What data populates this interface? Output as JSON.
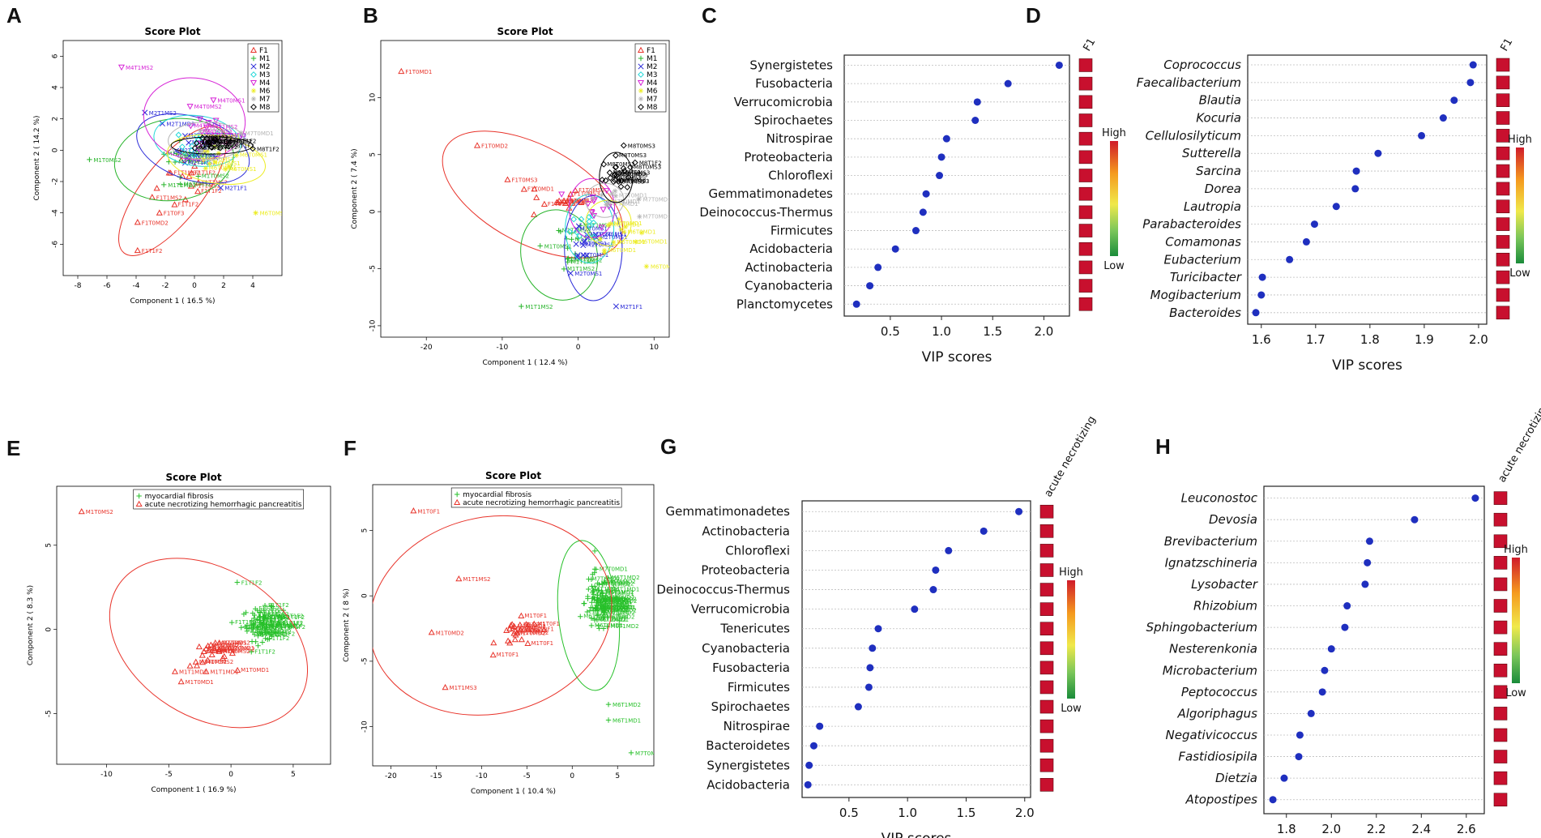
{
  "colors": {
    "dot": "#1f2fbf",
    "heat_cell": "#c8102e",
    "grid": "#bdbdbd",
    "F1": "#e8332a",
    "M1": "#27b42a",
    "M2": "#2a2ad8",
    "M3": "#22d8d8",
    "M4": "#d622d6",
    "M6": "#ecec22",
    "M7": "#b4b4b4",
    "M8": "#000000",
    "myocardial_fibrosis": "#27c02a",
    "acute_necrotizing": "#e8332a"
  },
  "chart_data": [
    {
      "panel": "A",
      "type": "scatter",
      "title": "Score Plot",
      "xlabel": "Component 1 ( 16.5 %)",
      "ylabel": "Component 2 ( 14.2 %)",
      "xlim": [
        -9,
        6
      ],
      "ylim": [
        -8,
        7
      ],
      "xticks": [
        -8,
        -6,
        -4,
        -2,
        0,
        2,
        4
      ],
      "yticks": [
        -6,
        -4,
        -2,
        0,
        2,
        4,
        6
      ],
      "legend": [
        "F1",
        "M1",
        "M2",
        "M3",
        "M4",
        "M6",
        "M7",
        "M8"
      ],
      "groups": [
        {
          "name": "F1",
          "center": [
            -0.6,
            -1.8
          ],
          "spread": [
            1.6,
            2.0
          ],
          "n": 14,
          "labels": [
            {
              "text": "F1T1F2",
              "x": -3.9,
              "y": -6.4
            },
            {
              "text": "F1T0MD2",
              "x": -3.9,
              "y": -4.6
            },
            {
              "text": "F1T1MS2",
              "x": -2.9,
              "y": -3.0
            },
            {
              "text": "F1T0F3",
              "x": -2.4,
              "y": -4.0
            }
          ],
          "ellipse": {
            "cx": -1.5,
            "cy": -2.6,
            "rx": 5.4,
            "ry": 1.9,
            "rot": 52
          }
        },
        {
          "name": "M1",
          "center": [
            -0.7,
            -0.6
          ],
          "spread": [
            1.4,
            1.0
          ],
          "n": 14,
          "labels": [
            {
              "text": "M1T0MS2",
              "x": -7.2,
              "y": -0.6
            },
            {
              "text": "M1T1MD2",
              "x": -2.1,
              "y": -2.2
            }
          ],
          "ellipse": {
            "cx": -1.4,
            "cy": -0.6,
            "rx": 4.1,
            "ry": 2.6,
            "rot": 8
          }
        },
        {
          "name": "M2",
          "center": [
            0.3,
            0.0
          ],
          "spread": [
            1.3,
            1.0
          ],
          "n": 14,
          "labels": [
            {
              "text": "M2T1MS2",
              "x": -3.4,
              "y": 2.4
            },
            {
              "text": "M2T1MD3",
              "x": -2.2,
              "y": 1.7
            },
            {
              "text": "M2T1F1",
              "x": 1.8,
              "y": -2.4
            }
          ],
          "ellipse": {
            "cx": -0.1,
            "cy": 0.1,
            "rx": 4.0,
            "ry": 2.0,
            "rot": -18
          }
        },
        {
          "name": "M3",
          "center": [
            0.4,
            0.3
          ],
          "spread": [
            1.2,
            0.9
          ],
          "n": 12,
          "labels": [],
          "ellipse": {
            "cx": 0.2,
            "cy": 0.6,
            "rx": 3.0,
            "ry": 1.6,
            "rot": -8
          }
        },
        {
          "name": "M4",
          "center": [
            0.3,
            1.0
          ],
          "spread": [
            1.3,
            1.0
          ],
          "n": 12,
          "labels": [
            {
              "text": "M4T1MS2",
              "x": -5.0,
              "y": 5.3
            },
            {
              "text": "M4T0MS1",
              "x": 1.3,
              "y": 3.2
            },
            {
              "text": "M4T0MS2",
              "x": -0.3,
              "y": 2.8
            }
          ],
          "ellipse": {
            "cx": 0.0,
            "cy": 2.0,
            "rx": 3.5,
            "ry": 2.6,
            "rot": -10
          }
        },
        {
          "name": "M6",
          "center": [
            1.5,
            -0.5
          ],
          "spread": [
            1.3,
            0.9
          ],
          "n": 12,
          "labels": [
            {
              "text": "M6T0MS1",
              "x": 4.2,
              "y": -4.0
            }
          ],
          "ellipse": {
            "cx": 1.5,
            "cy": -0.6,
            "rx": 3.4,
            "ry": 1.5,
            "rot": -10
          }
        },
        {
          "name": "M7",
          "center": [
            0.8,
            0.5
          ],
          "spread": [
            1.2,
            0.8
          ],
          "n": 10,
          "labels": [
            {
              "text": "M7T0MD1",
              "x": 3.2,
              "y": 1.1
            }
          ],
          "ellipse": {
            "cx": 0.8,
            "cy": 0.6,
            "rx": 2.6,
            "ry": 1.2,
            "rot": 0
          }
        },
        {
          "name": "M8",
          "center": [
            1.4,
            0.4
          ],
          "spread": [
            1.2,
            0.3
          ],
          "n": 22,
          "labels": [
            {
              "text": "M8T1F2",
              "x": 4.0,
              "y": 0.1
            }
          ],
          "ellipse": {
            "cx": 1.2,
            "cy": 0.3,
            "rx": 2.8,
            "ry": 0.55,
            "rot": 0
          }
        }
      ]
    },
    {
      "panel": "B",
      "type": "scatter",
      "title": "Score Plot",
      "xlabel": "Component 1 ( 12.4 %)",
      "ylabel": "Component 2 ( 7.4 %)",
      "xlim": [
        -26,
        12
      ],
      "ylim": [
        -11,
        15
      ],
      "xticks": [
        -20,
        -10,
        0,
        10
      ],
      "yticks": [
        -10,
        -5,
        0,
        5,
        10
      ],
      "legend": [
        "F1",
        "M1",
        "M2",
        "M3",
        "M4",
        "M6",
        "M7",
        "M8"
      ],
      "groups": [
        {
          "name": "F1",
          "center": [
            -3.0,
            1.0
          ],
          "spread": [
            3.0,
            1.5
          ],
          "n": 16,
          "labels": [
            {
              "text": "F1T0MD1",
              "x": -23.3,
              "y": 12.3
            },
            {
              "text": "F1T0MD2",
              "x": -13.3,
              "y": 5.8
            },
            {
              "text": "F1T0MS3",
              "x": -9.3,
              "y": 2.8
            }
          ],
          "ellipse": {
            "cx": -6.0,
            "cy": 1.5,
            "rx": 13.0,
            "ry": 4.3,
            "rot": -28
          }
        },
        {
          "name": "M1",
          "center": [
            -2.0,
            -3.0
          ],
          "spread": [
            2.5,
            2.0
          ],
          "n": 14,
          "labels": [
            {
              "text": "M1T1MS2",
              "x": -7.5,
              "y": -8.3
            },
            {
              "text": "M1T0MS1",
              "x": -5.0,
              "y": -3.0
            }
          ],
          "ellipse": {
            "cx": -2.5,
            "cy": -3.8,
            "rx": 5.0,
            "ry": 4.0,
            "rot": 15
          }
        },
        {
          "name": "M2",
          "center": [
            1.0,
            -2.5
          ],
          "spread": [
            2.0,
            2.0
          ],
          "n": 14,
          "labels": [
            {
              "text": "M2T0MS1",
              "x": -1.0,
              "y": -5.4
            },
            {
              "text": "M2T1F1",
              "x": 5.0,
              "y": -8.3
            }
          ],
          "ellipse": {
            "cx": 2.0,
            "cy": -3.2,
            "rx": 3.8,
            "ry": 4.6,
            "rot": 0
          }
        },
        {
          "name": "M3",
          "center": [
            1.5,
            -1.0
          ],
          "spread": [
            2.0,
            1.5
          ],
          "n": 12,
          "labels": [],
          "ellipse": {
            "cx": 1.5,
            "cy": -1.5,
            "rx": 3.2,
            "ry": 3.0,
            "rot": 0
          }
        },
        {
          "name": "M4",
          "center": [
            2.0,
            0.5
          ],
          "spread": [
            2.0,
            1.5
          ],
          "n": 12,
          "labels": [],
          "ellipse": {
            "cx": 1.8,
            "cy": 0.3,
            "rx": 3.0,
            "ry": 2.6,
            "rot": 0
          }
        },
        {
          "name": "M6",
          "center": [
            5.0,
            -1.5
          ],
          "spread": [
            2.5,
            1.5
          ],
          "n": 12,
          "labels": [
            {
              "text": "M6T0MD1",
              "x": 9.0,
              "y": -4.8
            }
          ],
          "ellipse": {
            "cx": 4.0,
            "cy": -1.0,
            "rx": 3.0,
            "ry": 2.0,
            "rot": 0
          }
        },
        {
          "name": "M7",
          "center": [
            4.0,
            1.0
          ],
          "spread": [
            2.5,
            1.2
          ],
          "n": 10,
          "labels": [
            {
              "text": "M7T0MD1",
              "x": 8.0,
              "y": 1.1
            }
          ],
          "ellipse": {
            "cx": 3.5,
            "cy": 1.0,
            "rx": 2.5,
            "ry": 1.5,
            "rot": 0
          }
        },
        {
          "name": "M8",
          "center": [
            5.0,
            3.3
          ],
          "spread": [
            1.5,
            1.2
          ],
          "n": 22,
          "labels": [
            {
              "text": "M8T0MS3",
              "x": 6.0,
              "y": 5.8
            },
            {
              "text": "M8T1F2",
              "x": 7.5,
              "y": 4.3
            }
          ],
          "ellipse": {
            "cx": 5.0,
            "cy": 3.0,
            "rx": 2.2,
            "ry": 2.2,
            "rot": 0
          }
        }
      ]
    },
    {
      "panel": "C",
      "type": "dot",
      "xlabel": "VIP scores",
      "column_header": "F1",
      "xlim": [
        0.05,
        2.25
      ],
      "xticks": [
        0.5,
        1.0,
        1.5,
        2.0
      ],
      "categories": [
        "Synergistetes",
        "Fusobacteria",
        "Verrucomicrobia",
        "Spirochaetes",
        "Nitrospirae",
        "Proteobacteria",
        "Chloroflexi",
        "Gemmatimonadetes",
        "Deinococcus-Thermus",
        "Firmicutes",
        "Acidobacteria",
        "Actinobacteria",
        "Cyanobacteria",
        "Planctomycetes"
      ],
      "values": [
        2.15,
        1.65,
        1.35,
        1.33,
        1.05,
        1.0,
        0.98,
        0.85,
        0.82,
        0.75,
        0.55,
        0.38,
        0.3,
        0.17
      ],
      "italic": false,
      "scale": {
        "high": "High",
        "low": "Low"
      }
    },
    {
      "panel": "D",
      "type": "dot",
      "xlabel": "VIP scores",
      "column_header": "F1",
      "xlim": [
        1.575,
        2.015
      ],
      "xticks": [
        1.6,
        1.7,
        1.8,
        1.9,
        2.0
      ],
      "categories": [
        "Coprococcus",
        "Faecalibacterium",
        "Blautia",
        "Kocuria",
        "Cellulosilyticum",
        "Sutterella",
        "Sarcina",
        "Dorea",
        "Lautropia",
        "Parabacteroides",
        "Comamonas",
        "Eubacterium",
        "Turicibacter",
        "Mogibacterium",
        "Bacteroides"
      ],
      "values": [
        1.99,
        1.985,
        1.955,
        1.935,
        1.895,
        1.815,
        1.775,
        1.773,
        1.738,
        1.698,
        1.683,
        1.652,
        1.602,
        1.6,
        1.59
      ],
      "italic": true,
      "scale": {
        "high": "High",
        "low": "Low"
      }
    },
    {
      "panel": "E",
      "type": "scatter",
      "title": "Score Plot",
      "xlabel": "Component 1 ( 16.9 %)",
      "ylabel": "Component 2 ( 8.3 %)",
      "xlim": [
        -14,
        8
      ],
      "ylim": [
        -8,
        8.5
      ],
      "xticks": [
        -10,
        -5,
        0,
        5
      ],
      "yticks": [
        -5,
        0,
        5
      ],
      "legend": [
        "myocardial fibrosis",
        "acute necrotizing hemorrhagic pancreatitis"
      ],
      "groups": [
        {
          "name": "myocardial fibrosis",
          "center": [
            2.5,
            0.3
          ],
          "spread": [
            1.4,
            0.8
          ],
          "n": 90,
          "labels": [
            {
              "text": "F1T1F2",
              "x": 0.5,
              "y": 2.8
            }
          ],
          "ellipse": null
        },
        {
          "name": "acute necrotizing hemorrhagic pancreatitis",
          "center": [
            -1.5,
            -1.5
          ],
          "spread": [
            1.5,
            0.6
          ],
          "n": 26,
          "labels": [
            {
              "text": "M1T0MS2",
              "x": -12.0,
              "y": 7.0
            },
            {
              "text": "M1T1MD1",
              "x": -4.5,
              "y": -2.5
            },
            {
              "text": "M1T0MD1",
              "x": -4.0,
              "y": -3.1
            },
            {
              "text": "M1T1MD1",
              "x": -2.0,
              "y": -2.5
            }
          ],
          "ellipse": {
            "cx": -1.8,
            "cy": -0.8,
            "rx": 8.6,
            "ry": 4.4,
            "rot": -32
          }
        }
      ]
    },
    {
      "panel": "F",
      "type": "scatter",
      "title": "Score Plot",
      "xlabel": "Component 1 ( 10.4 %)",
      "ylabel": "Component 2 ( 8 %)",
      "xlim": [
        -22,
        9
      ],
      "ylim": [
        -13,
        8.5
      ],
      "xticks": [
        -20,
        -15,
        -10,
        -5,
        0,
        5
      ],
      "yticks": [
        -10,
        -5,
        0,
        5
      ],
      "legend": [
        "myocardial fibrosis",
        "acute necrotizing hemorrhagic pancreatitis"
      ],
      "groups": [
        {
          "name": "myocardial fibrosis",
          "center": [
            2.8,
            -0.5
          ],
          "spread": [
            1.2,
            2.0
          ],
          "n": 90,
          "labels": [
            {
              "text": "M7T0MD1",
              "x": 6.5,
              "y": -12.0
            },
            {
              "text": "M6T1MD2",
              "x": 4.0,
              "y": -8.3
            },
            {
              "text": "M6T1MD1",
              "x": 4.0,
              "y": -9.5
            }
          ],
          "ellipse": {
            "cx": 1.8,
            "cy": -1.5,
            "rx": 8.3,
            "ry": 2.3,
            "rot": -84
          }
        },
        {
          "name": "acute necrotizing hemorrhagic pancreatitis",
          "center": [
            -6.0,
            -3.0
          ],
          "spread": [
            2.0,
            1.0
          ],
          "n": 24,
          "labels": [
            {
              "text": "M1T0F1",
              "x": -17.5,
              "y": 6.5
            },
            {
              "text": "M1T1MS2",
              "x": -12.5,
              "y": 1.3
            },
            {
              "text": "M1T0MD2",
              "x": -15.5,
              "y": -2.8
            },
            {
              "text": "M1T1MS3",
              "x": -14.0,
              "y": -7.0
            }
          ],
          "ellipse": {
            "cx": -9.0,
            "cy": -1.5,
            "rx": 13.5,
            "ry": 7.5,
            "rot": 14
          }
        }
      ]
    },
    {
      "panel": "G",
      "type": "dot",
      "xlabel": "VIP scores",
      "column_header": "acute necrotizing",
      "xlim": [
        0.1,
        2.05
      ],
      "xticks": [
        0.5,
        1.0,
        1.5,
        2.0
      ],
      "categories": [
        "Gemmatimonadetes",
        "Actinobacteria",
        "Chloroflexi",
        "Proteobacteria",
        "Deinococcus-Thermus",
        "Verrucomicrobia",
        "Tenericutes",
        "Cyanobacteria",
        "Fusobacteria",
        "Firmicutes",
        "Spirochaetes",
        "Nitrospirae",
        "Bacteroidetes",
        "Synergistetes",
        "Acidobacteria"
      ],
      "values": [
        1.95,
        1.65,
        1.35,
        1.24,
        1.22,
        1.06,
        0.75,
        0.7,
        0.68,
        0.67,
        0.58,
        0.25,
        0.2,
        0.16,
        0.15
      ],
      "italic": false,
      "scale": {
        "high": "High",
        "low": "Low"
      }
    },
    {
      "panel": "H",
      "type": "dot",
      "xlabel": "VIP scores",
      "column_header": "acute necrotizing",
      "xlim": [
        1.7,
        2.68
      ],
      "xticks": [
        1.8,
        2.0,
        2.2,
        2.4,
        2.6
      ],
      "categories": [
        "Leuconostoc",
        "Devosia",
        "Brevibacterium",
        "Ignatzschineria",
        "Lysobacter",
        "Rhizobium",
        "Sphingobacterium",
        "Nesterenkonia",
        "Microbacterium",
        "Peptococcus",
        "Algoriphagus",
        "Negativicoccus",
        "Fastidiosipila",
        "Dietzia",
        "Atopostipes"
      ],
      "values": [
        2.64,
        2.37,
        2.17,
        2.16,
        2.15,
        2.07,
        2.06,
        2.0,
        1.97,
        1.96,
        1.91,
        1.86,
        1.855,
        1.79,
        1.74
      ],
      "italic": true,
      "scale": {
        "high": "High",
        "low": "Low"
      }
    }
  ]
}
